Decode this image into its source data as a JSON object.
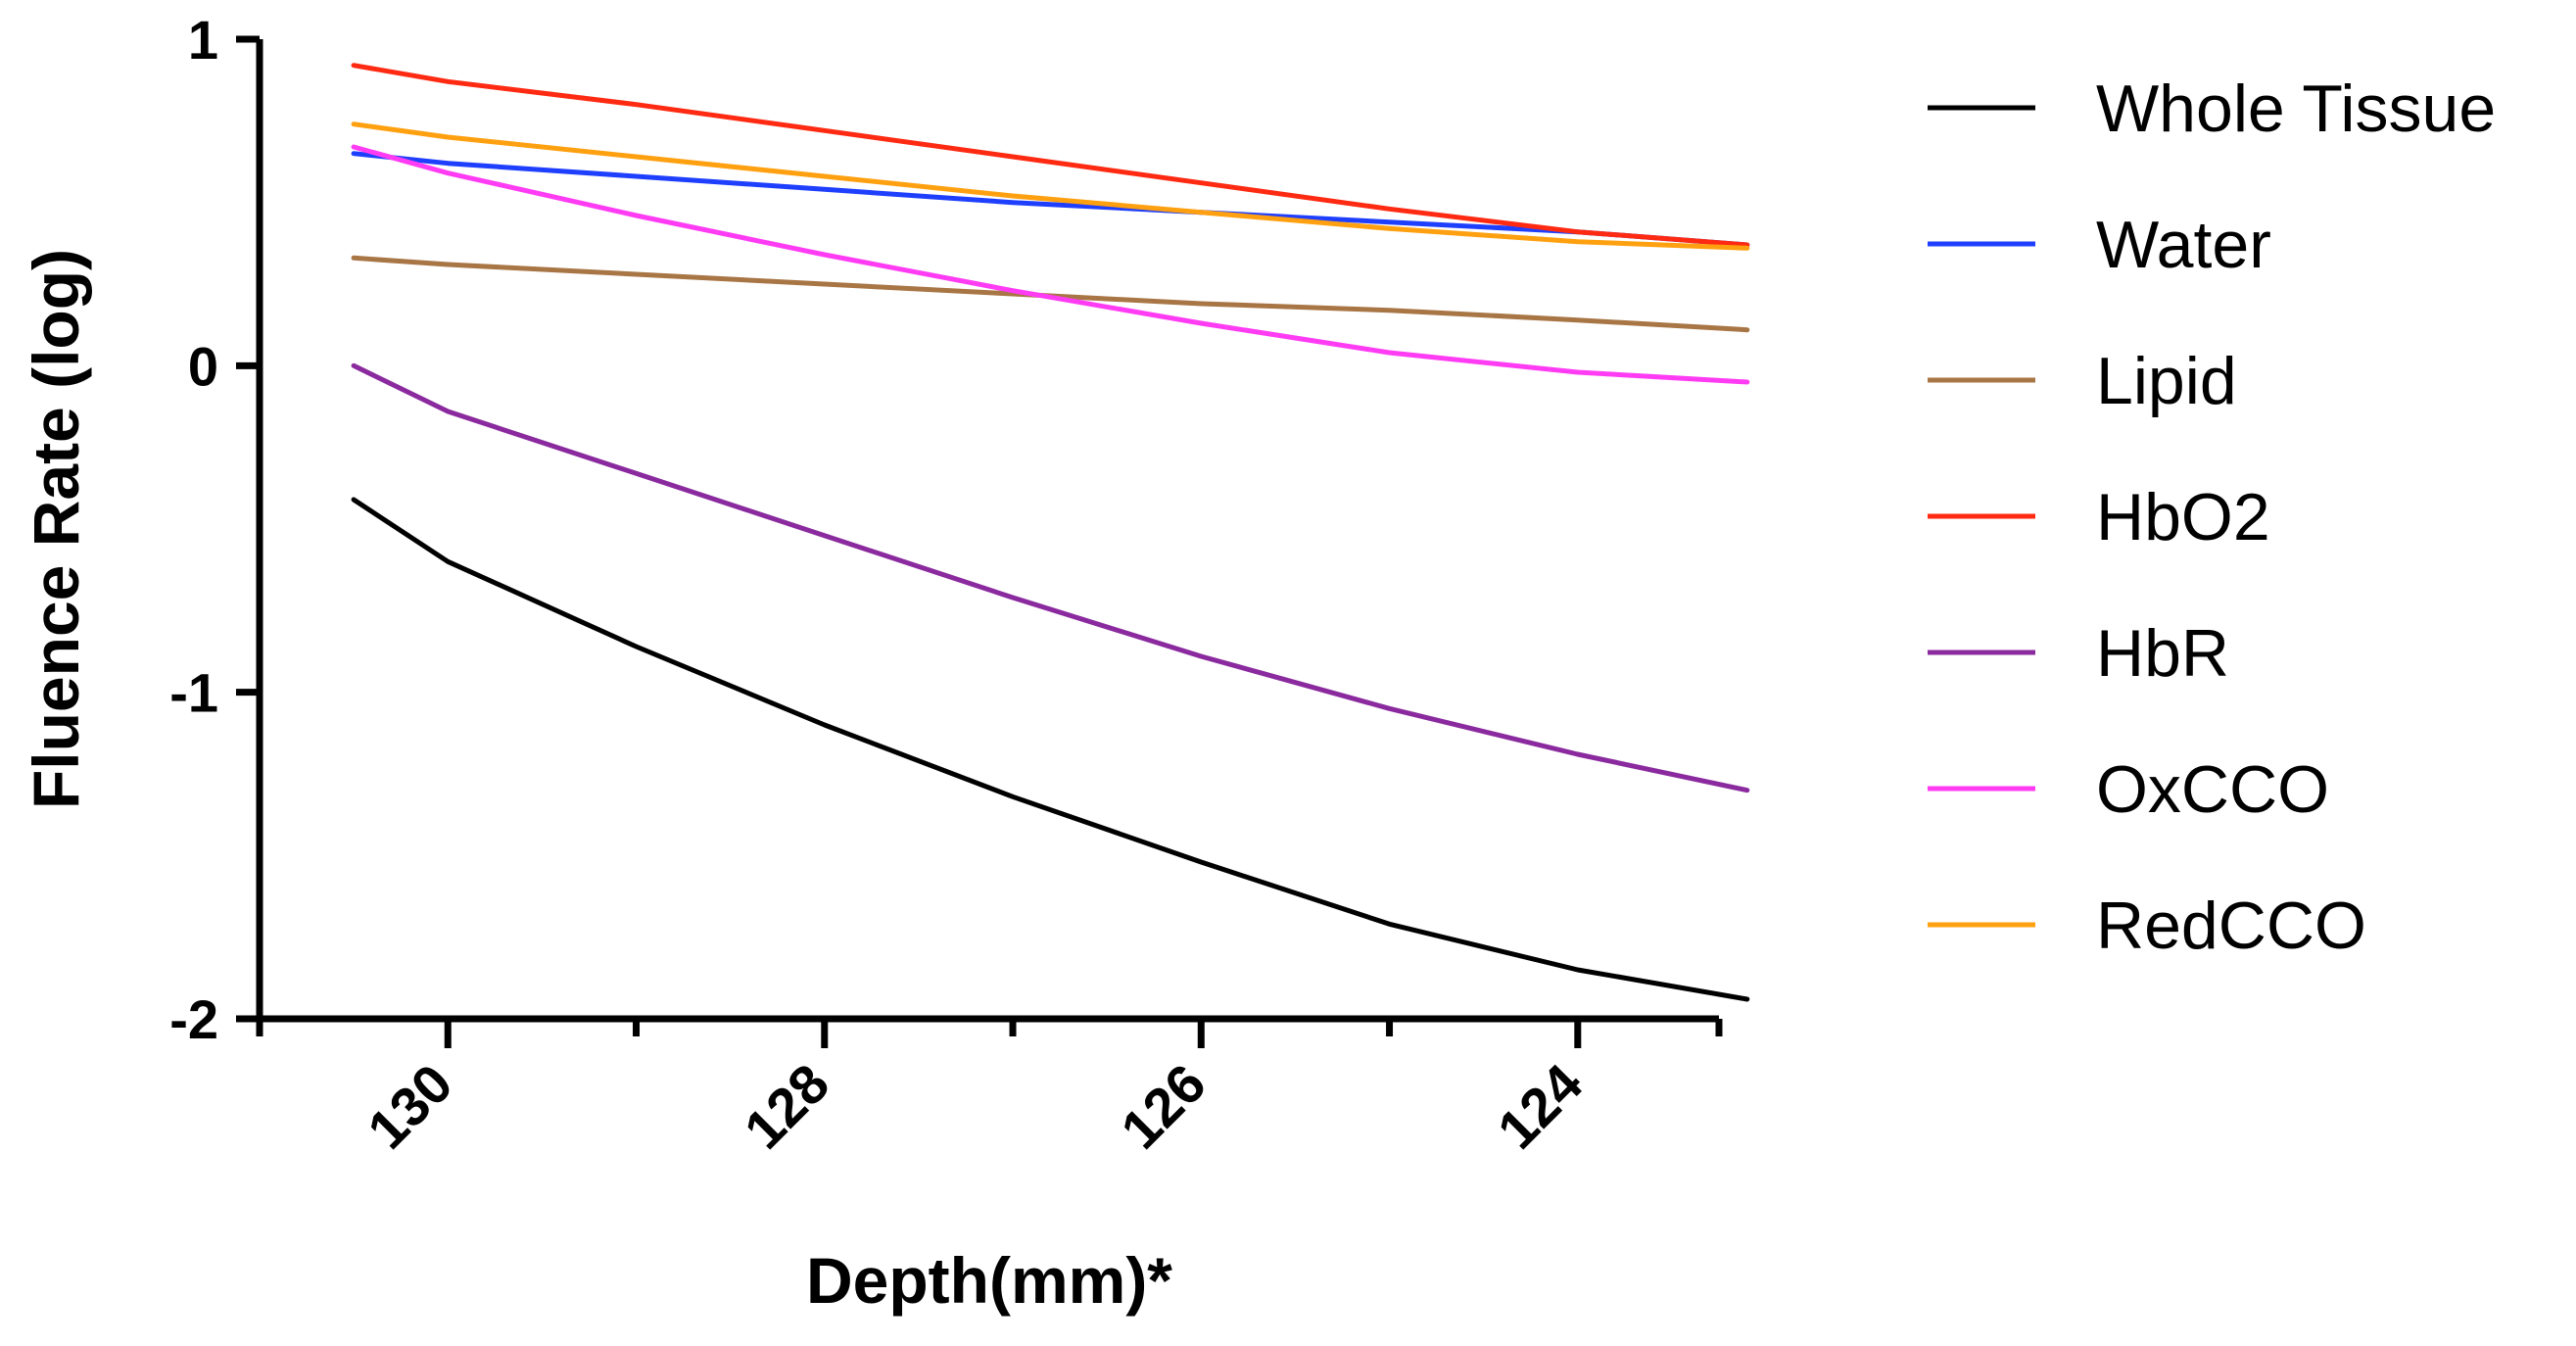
{
  "chart_data": {
    "type": "line",
    "title": "",
    "xlabel": "Depth(mm)*",
    "ylabel": "Fluence Rate (log)",
    "xlim": [
      131,
      123.25
    ],
    "ylim": [
      -2,
      1
    ],
    "x_ticks": [
      130,
      128,
      126,
      124
    ],
    "x_tick_labels": [
      "130",
      "128",
      "126",
      "124"
    ],
    "y_ticks": [
      1,
      0,
      -1,
      -2
    ],
    "y_tick_labels": [
      "1",
      "0",
      "-1",
      "-2"
    ],
    "x": [
      130.5,
      130.0,
      129.0,
      128.0,
      127.0,
      126.0,
      125.0,
      124.0,
      123.1
    ],
    "series": [
      {
        "name": "Whole Tissue",
        "color": "#000000",
        "values": [
          -0.41,
          -0.6,
          -0.86,
          -1.1,
          -1.32,
          -1.52,
          -1.71,
          -1.85,
          -1.94
        ]
      },
      {
        "name": "Water",
        "color": "#1f3fff",
        "values": [
          0.65,
          0.62,
          0.58,
          0.54,
          0.5,
          0.47,
          0.44,
          0.41,
          0.37
        ]
      },
      {
        "name": "Lipid",
        "color": "#a87545",
        "values": [
          0.33,
          0.31,
          0.28,
          0.25,
          0.22,
          0.19,
          0.17,
          0.14,
          0.11
        ]
      },
      {
        "name": "HbO2",
        "color": "#ff2a12",
        "values": [
          0.92,
          0.87,
          0.8,
          0.72,
          0.64,
          0.56,
          0.48,
          0.41,
          0.37
        ]
      },
      {
        "name": "HbR",
        "color": "#8a2a9e",
        "values": [
          0.0,
          -0.14,
          -0.33,
          -0.52,
          -0.71,
          -0.89,
          -1.05,
          -1.19,
          -1.3
        ]
      },
      {
        "name": "OxCCO",
        "color": "#ff3cf4",
        "values": [
          0.67,
          0.59,
          0.46,
          0.34,
          0.23,
          0.13,
          0.04,
          -0.02,
          -0.05
        ]
      },
      {
        "name": "RedCCO",
        "color": "#ffa010",
        "values": [
          0.74,
          0.7,
          0.64,
          0.58,
          0.52,
          0.47,
          0.42,
          0.38,
          0.36
        ]
      }
    ],
    "grid": false,
    "legend_position": "right"
  }
}
